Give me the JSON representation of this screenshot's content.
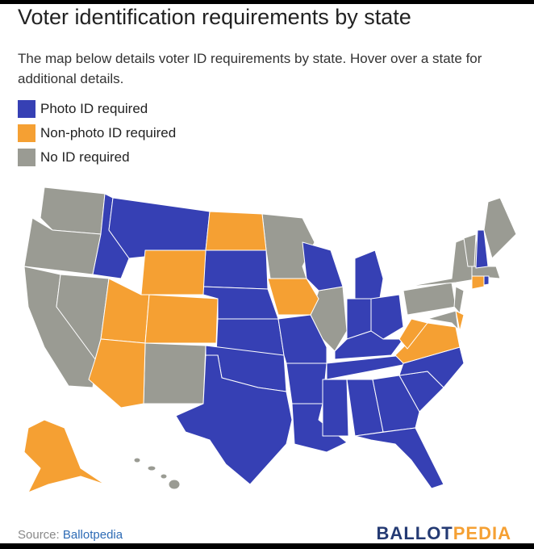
{
  "header": {
    "title": "Voter identification requirements by state",
    "subtitle": "The map below details voter ID requirements by state. Hover over a state for additional details."
  },
  "legend": {
    "items": [
      {
        "label": "Photo ID required",
        "color": "#3640b4"
      },
      {
        "label": "Non-photo ID required",
        "color": "#f5a033"
      },
      {
        "label": "No ID required",
        "color": "#9a9b93"
      }
    ]
  },
  "footer": {
    "source_label": "Source:",
    "source_link": "Ballotpedia",
    "logo_left": "BALLOT",
    "logo_right": "PEDIA"
  }
}
